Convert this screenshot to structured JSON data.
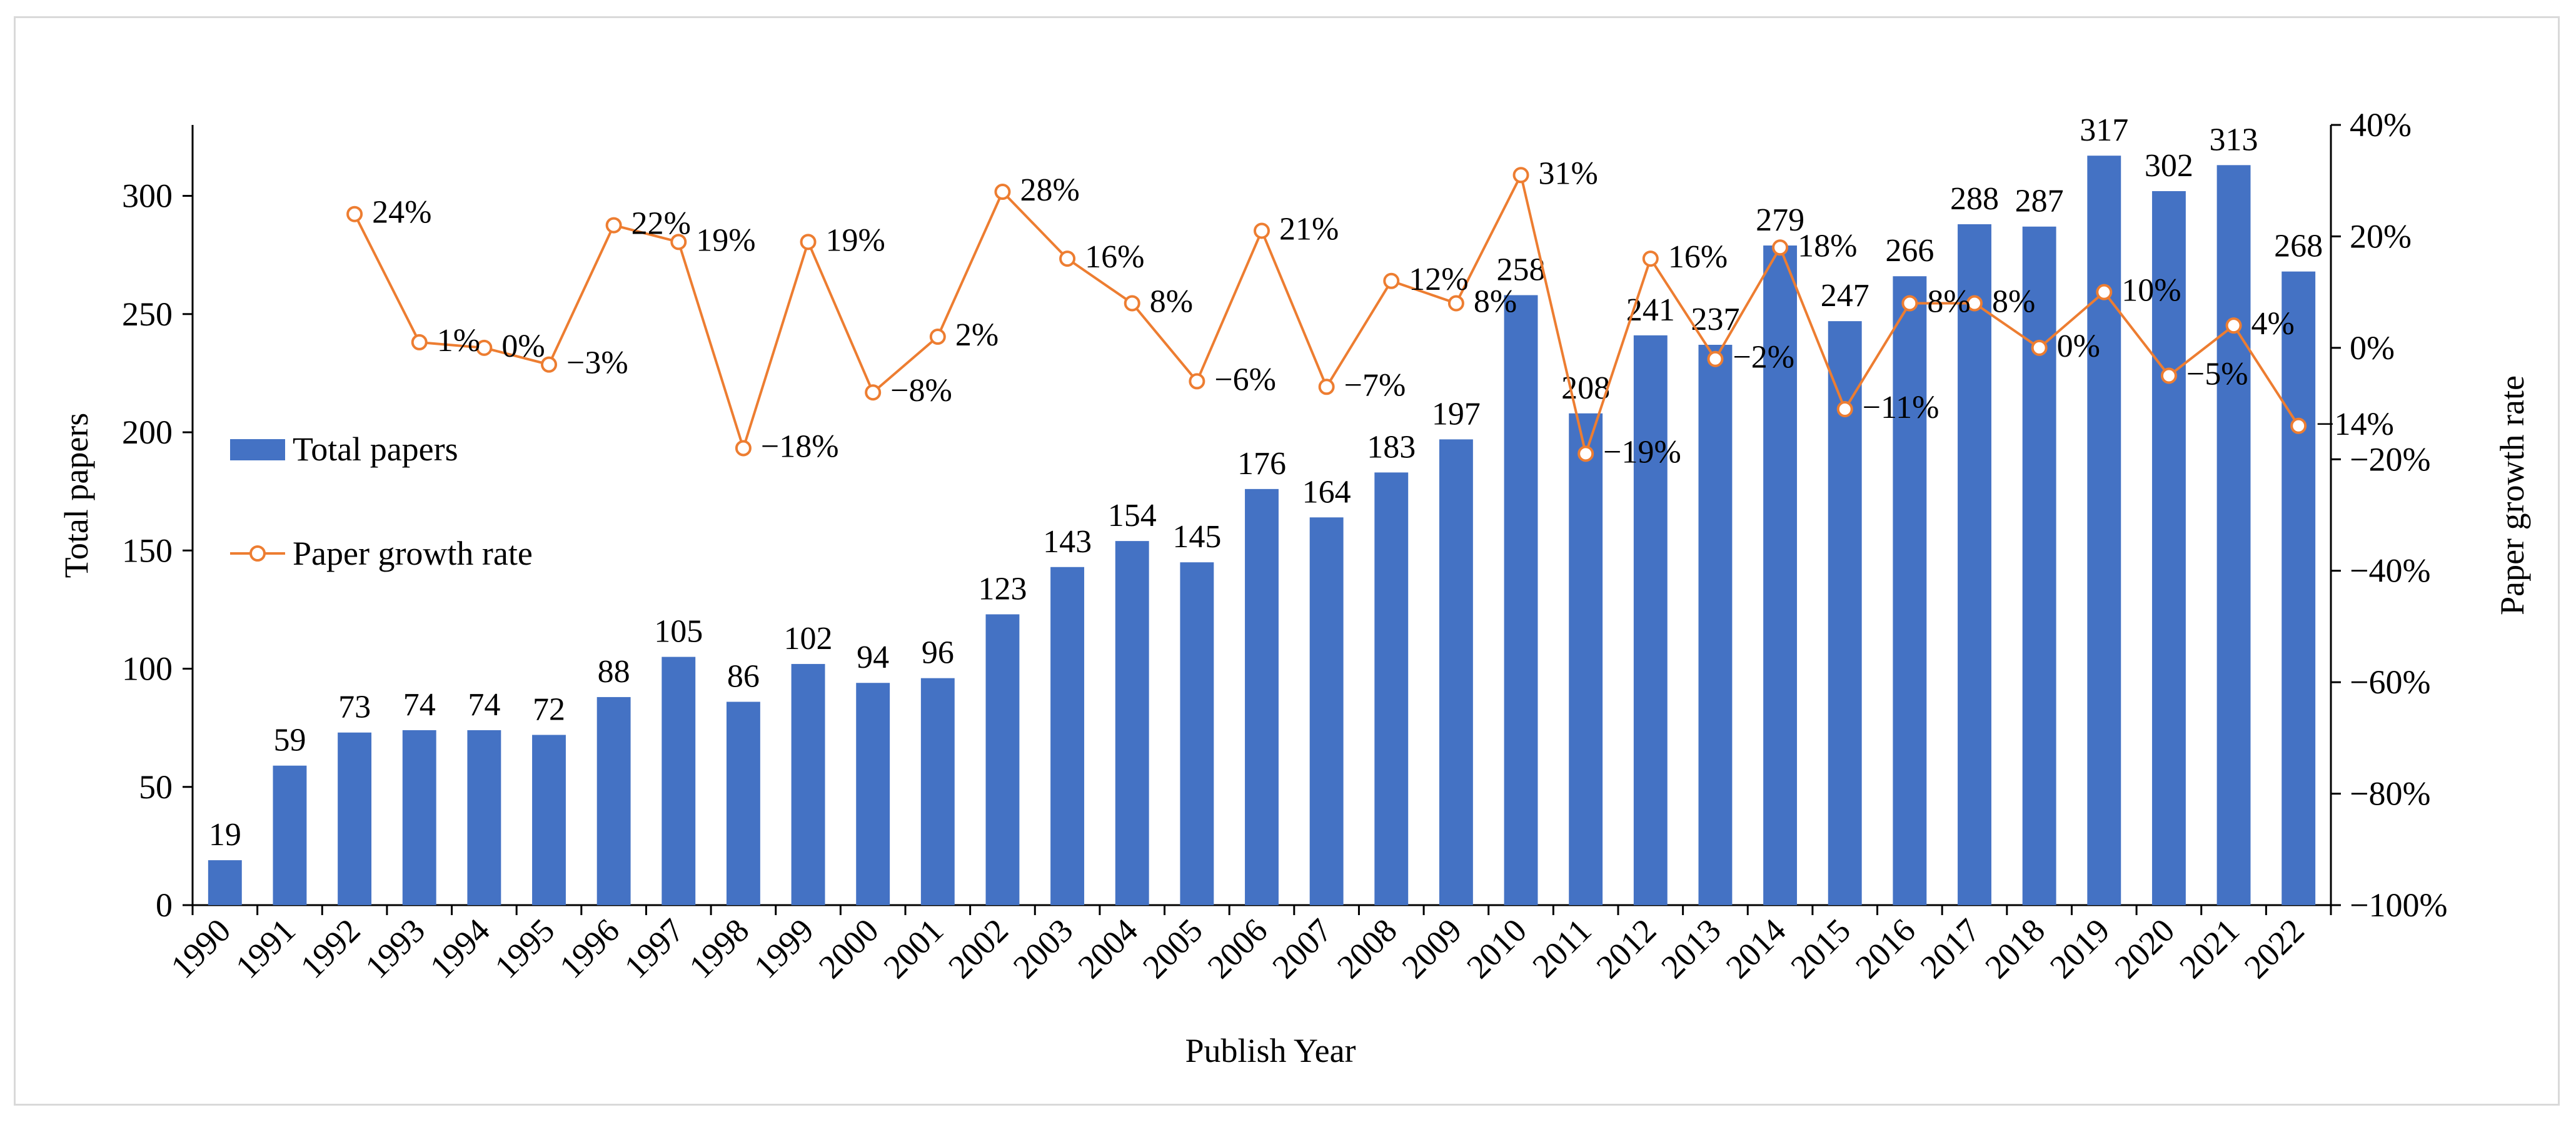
{
  "chart_data": {
    "type": "bar",
    "categories": [
      "1990",
      "1991",
      "1992",
      "1993",
      "1994",
      "1995",
      "1996",
      "1997",
      "1998",
      "1999",
      "2000",
      "2001",
      "2002",
      "2003",
      "2004",
      "2005",
      "2006",
      "2007",
      "2008",
      "2009",
      "2010",
      "2011",
      "2012",
      "2013",
      "2014",
      "2015",
      "2016",
      "2017",
      "2018",
      "2019",
      "2020",
      "2021",
      "2022"
    ],
    "series": [
      {
        "name": "Total papers",
        "type": "bar",
        "axis": "left",
        "color": "#4472C4",
        "values": [
          19,
          59,
          73,
          74,
          74,
          72,
          88,
          105,
          86,
          102,
          94,
          96,
          123,
          143,
          154,
          145,
          176,
          164,
          183,
          197,
          258,
          208,
          241,
          237,
          279,
          247,
          266,
          288,
          287,
          317,
          302,
          313,
          268
        ],
        "labels": [
          "19",
          "59",
          "73",
          "74",
          "74",
          "72",
          "88",
          "105",
          "86",
          "102",
          "94",
          "96",
          "123",
          "143",
          "154",
          "145",
          "176",
          "164",
          "183",
          "197",
          "258",
          "208",
          "241",
          "237",
          "279",
          "247",
          "266",
          "288",
          "287",
          "317",
          "302",
          "313",
          "268"
        ]
      },
      {
        "name": "Paper growth rate",
        "type": "line",
        "axis": "right",
        "color": "#ED7D31",
        "marker": "open-circle",
        "values": [
          null,
          null,
          24,
          1,
          0,
          -3,
          22,
          19,
          -18,
          19,
          -8,
          2,
          28,
          16,
          8,
          -6,
          21,
          -7,
          12,
          8,
          31,
          -19,
          16,
          -2,
          18,
          -11,
          8,
          8,
          0,
          10,
          -5,
          4,
          -14
        ],
        "labels": [
          "",
          "",
          "24%",
          "1%",
          "0%",
          "−3%",
          "22%",
          "19%",
          "−18%",
          "19%",
          "−8%",
          "2%",
          "28%",
          "16%",
          "8%",
          "−6%",
          "21%",
          "−7%",
          "12%",
          "8%",
          "31%",
          "−19%",
          "16%",
          "−2%",
          "18%",
          "−11%",
          "8%",
          "8%",
          "0%",
          "10%",
          "−5%",
          "4%",
          "−14%"
        ]
      }
    ],
    "xlabel": "Publish Year",
    "ylabel": "Total papers",
    "y2label": "Paper growth rate",
    "ylim": [
      0,
      330
    ],
    "y2lim": [
      -100,
      40
    ],
    "yticks": [
      "0",
      "50",
      "100",
      "150",
      "200",
      "250",
      "300"
    ],
    "y2ticks": [
      "−100%",
      "−80%",
      "−60%",
      "−40%",
      "−20%",
      "0%",
      "20%",
      "40%"
    ],
    "grid": false,
    "legend_position": "left"
  }
}
